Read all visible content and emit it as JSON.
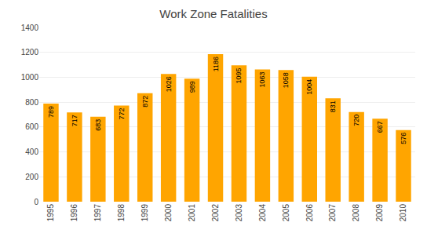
{
  "chart_data": {
    "type": "bar",
    "title": "Work Zone Fatalities",
    "categories": [
      "1995",
      "1996",
      "1997",
      "1998",
      "1999",
      "2000",
      "2001",
      "2002",
      "2003",
      "2004",
      "2005",
      "2006",
      "2007",
      "2008",
      "2009",
      "2010"
    ],
    "values": [
      789,
      717,
      683,
      772,
      872,
      1026,
      989,
      1186,
      1095,
      1063,
      1058,
      1004,
      831,
      720,
      667,
      576
    ],
    "color": "#FFA500",
    "ylim": [
      0,
      1400
    ],
    "yticks": [
      0,
      200,
      400,
      600,
      800,
      1000,
      1200,
      1400
    ],
    "grid": true,
    "data_labels": true
  }
}
